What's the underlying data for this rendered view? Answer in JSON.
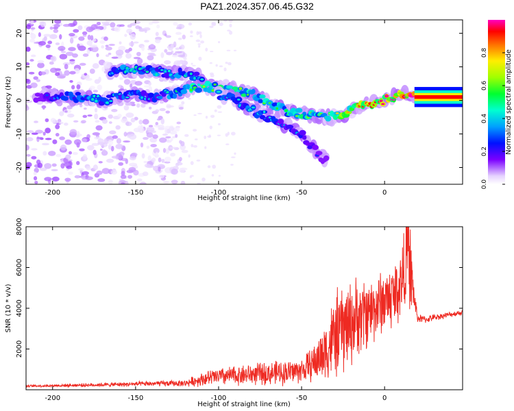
{
  "title": "PAZ1.2024.357.06.45.G32",
  "colors": {
    "snr_line": "#ee2a22",
    "axis": "#000000"
  },
  "chart_data": [
    {
      "type": "heatmap",
      "title": "PAZ1.2024.357.06.45.G32",
      "xlabel": "Height of straight line (km)",
      "ylabel": "Frequency (Hz)",
      "xlim": [
        -216,
        47
      ],
      "ylim": [
        -25,
        24
      ],
      "xticks": [
        -200,
        -150,
        -100,
        -50,
        0
      ],
      "yticks": [
        -20,
        -10,
        0,
        10,
        20
      ],
      "colorbar": {
        "label": "Normalized spectral amplitude",
        "range": [
          0,
          1
        ],
        "ticks": [
          "0.0",
          "0.2",
          "0.4",
          "0.6",
          "0.8"
        ],
        "colormap": "rainbow (white → violet → blue → cyan → green → yellow → red → magenta)"
      },
      "ridges": [
        {
          "x": [
            -210,
            -190,
            -180,
            -170,
            -160,
            -150,
            -140,
            -130,
            -120,
            -110,
            -100,
            -90,
            -80,
            -70,
            -60,
            -50,
            -40,
            -30,
            -20,
            -10,
            0,
            10,
            15,
            20,
            30,
            47
          ],
          "y": [
            1,
            1,
            1,
            0,
            1,
            2,
            1,
            2,
            3,
            4,
            4,
            3,
            2,
            -1,
            -3,
            -4,
            -5,
            -5,
            -3,
            -1,
            0,
            2,
            2,
            1,
            1,
            1
          ],
          "amp": [
            0.1,
            0.3,
            0.35,
            0.3,
            0.3,
            0.3,
            0.25,
            0.35,
            0.4,
            0.5,
            0.45,
            0.5,
            0.45,
            0.45,
            0.4,
            0.5,
            0.45,
            0.6,
            0.65,
            0.75,
            0.8,
            0.85,
            1,
            1,
            1,
            1
          ]
        },
        {
          "x": [
            -165,
            -155,
            -140,
            -130,
            -120,
            -110
          ],
          "y": [
            8,
            9,
            9,
            8,
            8,
            7
          ],
          "amp": [
            0.25,
            0.35,
            0.35,
            0.3,
            0.35,
            0.3
          ]
        },
        {
          "x": [
            -100,
            -90,
            -80,
            -70,
            -60,
            -50,
            -45,
            -40,
            -35
          ],
          "y": [
            2,
            0,
            -3,
            -5,
            -7,
            -10,
            -13,
            -16,
            -18
          ],
          "amp": [
            0.3,
            0.3,
            0.3,
            0.3,
            0.25,
            0.25,
            0.2,
            0.15,
            0.1
          ]
        }
      ],
      "noise_region": [
        -216,
        -120
      ]
    },
    {
      "type": "line",
      "xlabel": "Height of straight line (km)",
      "ylabel": "SNR (10 * v/v)",
      "xlim": [
        -216,
        47
      ],
      "ylim": [
        0,
        8000
      ],
      "xticks": [
        -200,
        -150,
        -100,
        -50,
        0
      ],
      "yticks": [
        2000,
        4000,
        6000,
        8000
      ],
      "series": [
        {
          "color": "#ee2a22",
          "x": [
            -216,
            -200,
            -180,
            -160,
            -140,
            -120,
            -112,
            -105,
            -100,
            -90,
            -80,
            -70,
            -60,
            -50,
            -45,
            -40,
            -35,
            -30,
            -25,
            -20,
            -15,
            -10,
            -5,
            0,
            5,
            10,
            12,
            14,
            16,
            18,
            20,
            25,
            30,
            40,
            47
          ],
          "y": [
            180,
            200,
            230,
            260,
            300,
            320,
            480,
            600,
            640,
            700,
            760,
            800,
            850,
            950,
            1200,
            1500,
            2000,
            2600,
            3000,
            3300,
            3600,
            3800,
            4100,
            4400,
            4600,
            5200,
            6000,
            7000,
            5600,
            4400,
            3500,
            3450,
            3550,
            3700,
            3800
          ],
          "envelope": [
            60,
            80,
            100,
            120,
            150,
            180,
            350,
            450,
            500,
            550,
            600,
            650,
            700,
            700,
            900,
            1300,
            1800,
            2400,
            2600,
            2400,
            2200,
            2000,
            1900,
            1800,
            1900,
            2200,
            2400,
            2600,
            2400,
            600,
            250,
            200,
            180,
            150,
            150
          ]
        }
      ]
    }
  ]
}
